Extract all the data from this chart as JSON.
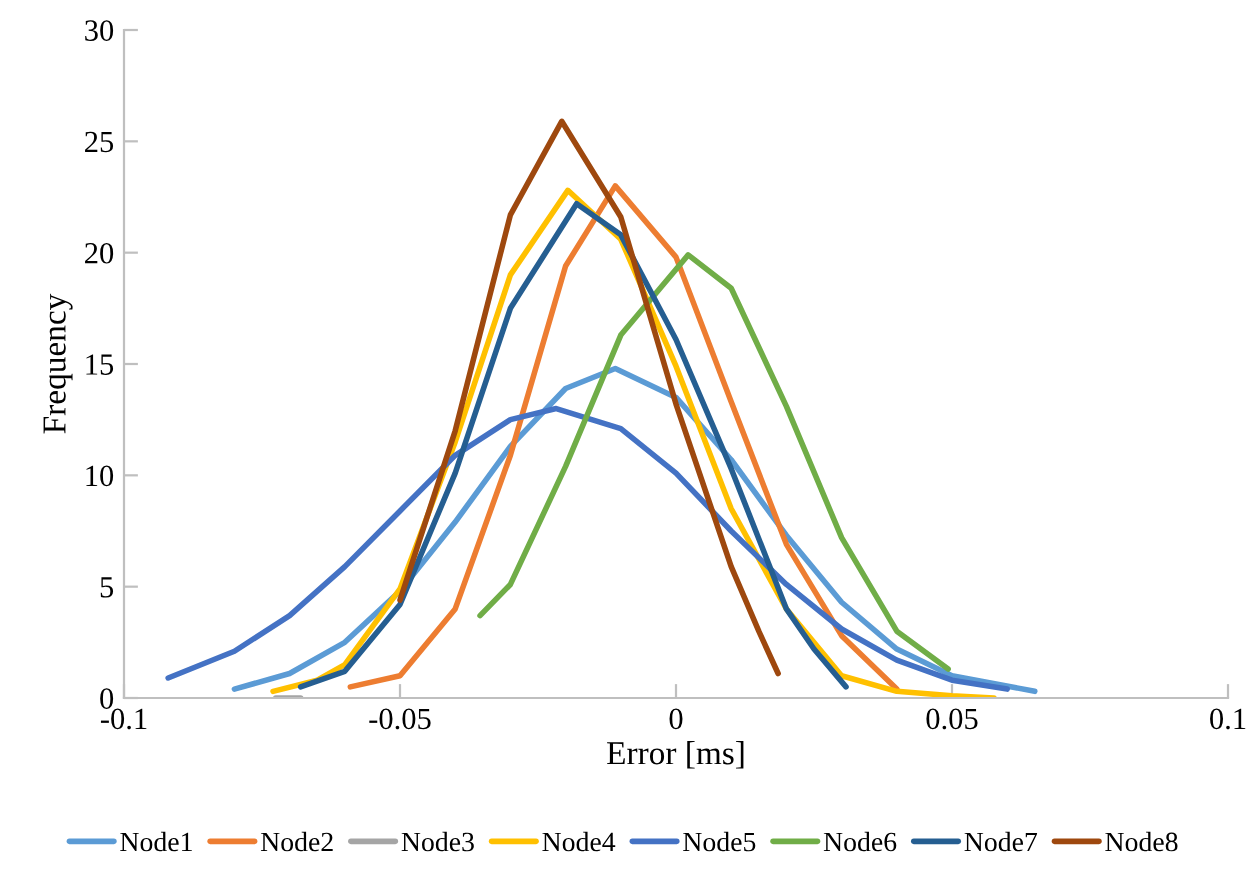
{
  "chart_data": {
    "type": "line",
    "xlabel": "Error [ms]",
    "ylabel": "Frequency",
    "xlim": [
      -0.1,
      0.1
    ],
    "xticks": [
      -0.1,
      -0.05,
      0,
      0.05,
      0.1
    ],
    "ylim": [
      0,
      30
    ],
    "yticks": [
      0,
      5,
      10,
      15,
      20,
      25,
      30
    ],
    "grid": false,
    "legend": "bottom",
    "marker": "none",
    "line_style": "solid",
    "series": [
      {
        "name": "Node1",
        "color": "#5b9bd5",
        "x": [
          -0.08,
          -0.07,
          -0.06,
          -0.05,
          -0.04,
          -0.03,
          -0.02,
          -0.011,
          0,
          0.01,
          0.02,
          0.03,
          0.04,
          0.05,
          0.065
        ],
        "values": [
          0.4,
          1.1,
          2.5,
          4.8,
          7.9,
          11.3,
          13.9,
          14.8,
          13.5,
          10.7,
          7.3,
          4.3,
          2.2,
          1.0,
          0.3
        ]
      },
      {
        "name": "Node2",
        "color": "#ed7d31",
        "x": [
          -0.059,
          -0.05,
          -0.04,
          -0.03,
          -0.02,
          -0.011,
          0,
          0.01,
          0.02,
          0.03,
          0.04
        ],
        "values": [
          0.5,
          1.0,
          4.0,
          10.9,
          19.4,
          23,
          19.8,
          13.3,
          6.9,
          2.8,
          0.4
        ]
      },
      {
        "name": "Node3",
        "color": "#a5a5a5",
        "x": [
          -0.0725,
          -0.068
        ],
        "values": [
          0,
          0
        ]
      },
      {
        "name": "Node4",
        "color": "#ffc000",
        "x": [
          -0.073,
          -0.065,
          -0.06,
          -0.05,
          -0.04,
          -0.03,
          -0.0196,
          -0.01,
          0,
          0.01,
          0.02,
          0.03,
          0.04,
          0.05,
          0.0576
        ],
        "values": [
          0.3,
          0.8,
          1.5,
          4.9,
          11.5,
          19.0,
          22.8,
          20.6,
          14.9,
          8.5,
          4.0,
          1.0,
          0.3,
          0.1,
          0
        ]
      },
      {
        "name": "Node5",
        "color": "#4472c4",
        "x": [
          -0.092,
          -0.08,
          -0.07,
          -0.06,
          -0.05,
          -0.04,
          -0.03,
          -0.0217,
          -0.01,
          0,
          0.01,
          0.02,
          0.03,
          0.04,
          0.05,
          0.06
        ],
        "values": [
          0.9,
          2.1,
          3.7,
          5.9,
          8.4,
          10.9,
          12.5,
          13.0,
          12.1,
          10.1,
          7.5,
          5.1,
          3.1,
          1.7,
          0.8,
          0.4
        ]
      },
      {
        "name": "Node6",
        "color": "#70ad47",
        "x": [
          -0.0355,
          -0.03,
          -0.02,
          -0.01,
          0.0022,
          0.01,
          0.02,
          0.03,
          0.04,
          0.0493
        ],
        "values": [
          3.7,
          5.1,
          10.4,
          16.3,
          19.9,
          18.4,
          13.1,
          7.2,
          3.0,
          1.3
        ]
      },
      {
        "name": "Node7",
        "color": "#255e91",
        "x": [
          -0.068,
          -0.06,
          -0.05,
          -0.04,
          -0.03,
          -0.018,
          -0.01,
          0,
          0.01,
          0.02,
          0.025,
          0.0308
        ],
        "values": [
          0.5,
          1.2,
          4.2,
          10.1,
          17.5,
          22.2,
          20.8,
          16.1,
          10.3,
          4.0,
          2.2,
          0.5
        ]
      },
      {
        "name": "Node8",
        "color": "#9e480e",
        "x": [
          -0.05,
          -0.04,
          -0.03,
          -0.0207,
          -0.01,
          0,
          0.01,
          0.015,
          0.0185
        ],
        "values": [
          4.4,
          12.0,
          21.7,
          25.9,
          21.6,
          13.2,
          5.9,
          3.0,
          1.1
        ]
      }
    ]
  }
}
